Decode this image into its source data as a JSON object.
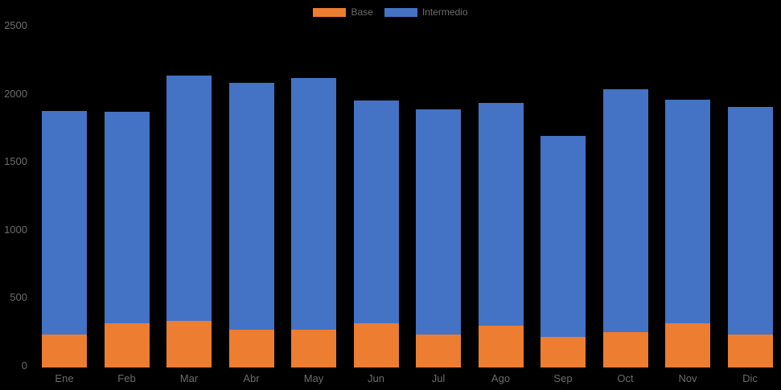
{
  "chart": {
    "background": "#000000",
    "axis_text_color": "#6b6b6b",
    "legend": {
      "position": "top-center",
      "items": [
        {
          "label": "Base",
          "color": "#ED7D31"
        },
        {
          "label": "Intermedio",
          "color": "#4472C4"
        }
      ]
    }
  },
  "chart_data": {
    "type": "bar",
    "stacked": true,
    "title": "",
    "xlabel": "",
    "ylabel": "",
    "categories": [
      "Ene",
      "Feb",
      "Mar",
      "Abr",
      "May",
      "Jun",
      "Jul",
      "Ago",
      "Sep",
      "Oct",
      "Nov",
      "Dic"
    ],
    "series": [
      {
        "name": "Base",
        "color": "#ED7D31",
        "values": [
          240,
          325,
          345,
          280,
          275,
          325,
          240,
          310,
          225,
          260,
          325,
          245
        ]
      },
      {
        "name": "Intermedio",
        "color": "#4472C4",
        "values": [
          1645,
          1555,
          1800,
          1815,
          1850,
          1640,
          1655,
          1635,
          1475,
          1785,
          1645,
          1670
        ]
      }
    ],
    "totals": [
      1885,
      1880,
      2145,
      2095,
      2125,
      1965,
      1895,
      1945,
      1700,
      2045,
      1970,
      1915
    ],
    "ylim": [
      0,
      2500
    ],
    "yticks": [
      0,
      500,
      1000,
      1500,
      2000,
      2500
    ],
    "grid": false,
    "legend_position": "top"
  }
}
